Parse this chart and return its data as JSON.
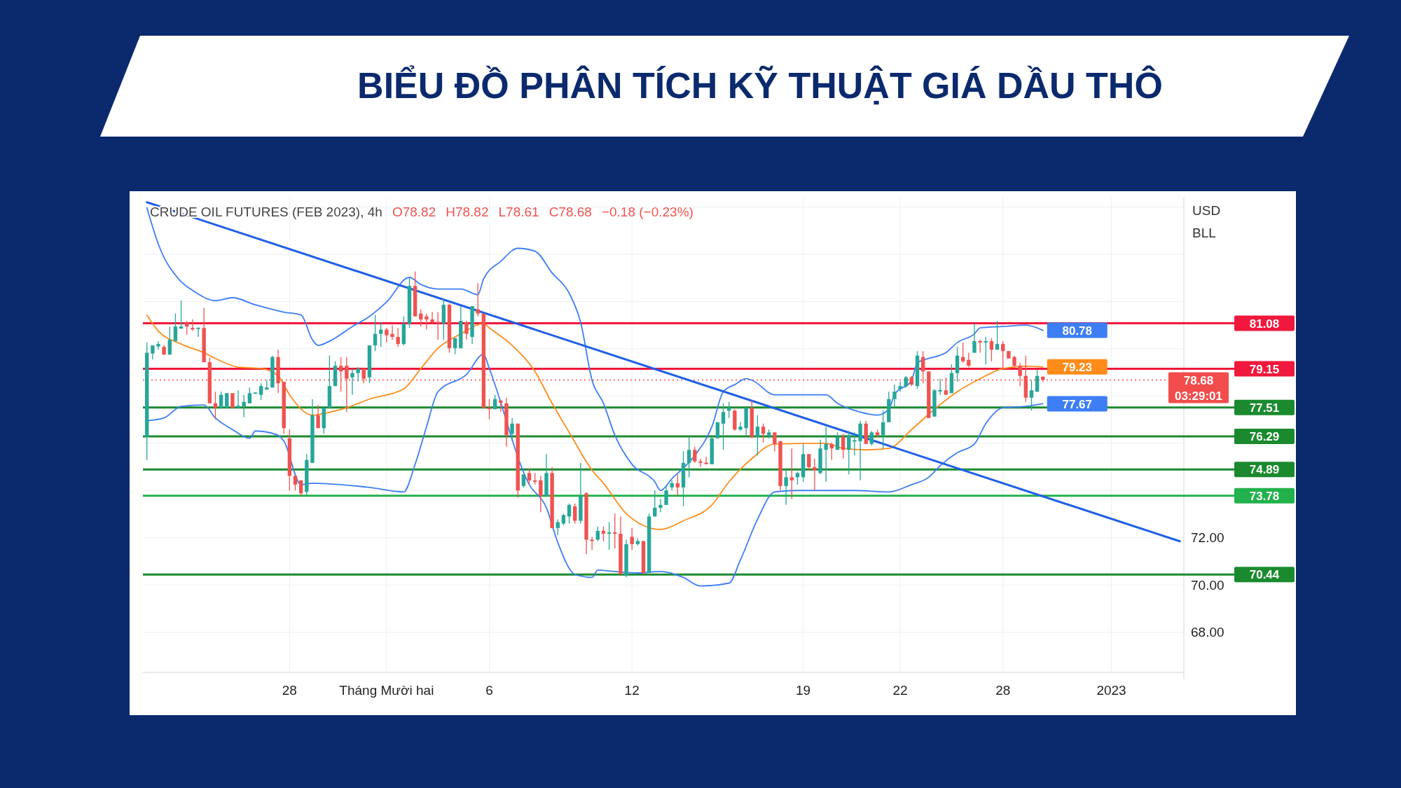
{
  "chart_data": {
    "type": "candlestick",
    "title": "BIỂU ĐỒ PHÂN TÍCH KỸ THUẬT GIÁ DẦU THÔ",
    "subtitle": "CRUDE OIL FUTURES (FEB 2023), 4h",
    "ylabel": "USD",
    "annotations": [
      "O78.82",
      "H78.82",
      "L78.61",
      "C78.68",
      "−0.18 (−0.23%)",
      "BLL"
    ],
    "categories": [
      null,
      null,
      null,
      null,
      null,
      null,
      null,
      null,
      null,
      null,
      null,
      null,
      null,
      null,
      null,
      null,
      null,
      null,
      null,
      null,
      null,
      null,
      null,
      null,
      null,
      "28",
      null,
      null,
      null,
      null,
      null,
      null,
      null,
      null,
      null,
      null,
      null,
      null,
      null,
      null,
      null,
      null,
      "Tháng Mười hai",
      null,
      null,
      null,
      null,
      null,
      null,
      null,
      null,
      null,
      null,
      null,
      null,
      null,
      null,
      null,
      null,
      null,
      "6",
      null,
      null,
      null,
      null,
      null,
      null,
      null,
      null,
      null,
      null,
      null,
      null,
      null,
      null,
      null,
      null,
      null,
      null,
      null,
      null,
      null,
      null,
      null,
      null,
      "12",
      null,
      null,
      null,
      null,
      null,
      null,
      null,
      null,
      null,
      null,
      null,
      null,
      null,
      null,
      null,
      null,
      null,
      null,
      null,
      null,
      null,
      null,
      null,
      null,
      null,
      null,
      null,
      null,
      null,
      "19",
      null,
      null,
      null,
      null,
      null,
      null,
      null,
      null,
      null,
      null,
      null,
      null,
      null,
      null,
      null,
      null,
      "22",
      null,
      null,
      null,
      null,
      null,
      null,
      null,
      null,
      null,
      null,
      null,
      null,
      null,
      null,
      null,
      null,
      null,
      "28",
      null,
      null,
      null,
      null,
      null,
      null,
      null,
      null,
      null,
      null,
      null,
      null,
      null,
      null,
      null,
      null,
      null,
      null,
      "2023",
      null,
      null,
      null,
      null,
      null,
      null,
      null,
      null,
      null,
      null,
      null,
      null
    ],
    "ylim": [
      66.3,
      86.4
    ],
    "yticks": [
      {
        "value": 68,
        "label": "68.00"
      },
      {
        "value": 70,
        "label": "70.00"
      },
      {
        "value": 72,
        "label": "72.00"
      },
      {
        "value": 74,
        "label": null
      },
      {
        "value": 76,
        "label": null
      },
      {
        "value": 78,
        "label": null
      },
      {
        "value": 80,
        "label": null
      },
      {
        "value": 82,
        "label": null
      },
      {
        "value": 84,
        "label": null
      },
      {
        "value": 86,
        "label": null
      }
    ],
    "grid": true,
    "ohlc": [
      [
        76.27,
        80.26,
        75.29,
        79.83
      ],
      [
        79.8,
        80.14,
        79.55,
        80.14
      ],
      [
        80.1,
        80.32,
        79.96,
        80.2
      ],
      [
        80.08,
        80.15,
        79.75,
        79.75
      ],
      [
        79.75,
        80.94,
        79.75,
        80.38
      ],
      [
        80.32,
        81.49,
        80.32,
        80.94
      ],
      [
        80.85,
        82.04,
        80.85,
        80.94
      ],
      [
        81.12,
        81.18,
        80.6,
        80.94
      ],
      [
        80.88,
        81.24,
        80.75,
        80.82
      ],
      [
        80.85,
        80.88,
        80.5,
        80.88
      ],
      [
        80.88,
        81.73,
        79.43,
        79.43
      ],
      [
        79.43,
        79.62,
        77.69,
        77.69
      ],
      [
        77.69,
        78.18,
        77.01,
        77.5
      ],
      [
        77.5,
        78.18,
        77.5,
        78.05
      ],
      [
        77.5,
        78.12,
        77.5,
        78.12
      ],
      [
        78.12,
        78.12,
        77.5,
        77.5
      ],
      [
        77.5,
        78.24,
        77.5,
        77.59
      ],
      [
        77.56,
        78.05,
        77.1,
        77.75
      ],
      [
        77.69,
        78.36,
        77.69,
        78.12
      ],
      [
        78.12,
        78.14,
        78.1,
        78.12
      ],
      [
        78.05,
        78.54,
        77.83,
        78.42
      ],
      [
        78.27,
        78.67,
        78.27,
        78.36
      ],
      [
        78.36,
        79.71,
        78.36,
        79.65
      ],
      [
        79.65,
        79.96,
        78.12,
        78.54
      ],
      [
        78.6,
        78.6,
        76.4,
        76.64
      ],
      [
        76.21,
        76.58,
        74.0,
        74.62
      ],
      [
        74.62,
        74.62,
        74.0,
        74.25
      ],
      [
        74.43,
        74.43,
        73.78,
        73.88
      ],
      [
        73.94,
        75.54,
        73.78,
        75.29
      ],
      [
        75.17,
        77.87,
        75.17,
        77.19
      ],
      [
        77.19,
        77.62,
        76.64,
        76.64
      ],
      [
        76.64,
        77.5,
        76.4,
        77.5
      ],
      [
        77.5,
        79.71,
        77.5,
        78.42
      ],
      [
        78.42,
        79.47,
        78.42,
        79.28
      ],
      [
        79.28,
        79.65,
        78.18,
        79.04
      ],
      [
        79.28,
        79.65,
        77.32,
        78.73
      ],
      [
        78.79,
        79.16,
        78.05,
        78.97
      ],
      [
        78.97,
        79.22,
        78.6,
        79.16
      ],
      [
        79.16,
        79.16,
        78.54,
        78.73
      ],
      [
        78.79,
        80.14,
        78.54,
        80.14
      ],
      [
        80.14,
        81.43,
        79.9,
        80.63
      ],
      [
        80.63,
        81.12,
        80.08,
        80.81
      ],
      [
        80.81,
        80.88,
        80.26,
        80.57
      ],
      [
        80.63,
        81.0,
        80.38,
        80.5
      ],
      [
        80.5,
        80.88,
        80.08,
        80.2
      ],
      [
        80.2,
        81.37,
        80.14,
        81.06
      ],
      [
        81.06,
        83.02,
        80.88,
        82.66
      ],
      [
        82.66,
        83.27,
        81.37,
        81.37
      ],
      [
        81.49,
        81.67,
        80.94,
        81.24
      ],
      [
        81.37,
        81.49,
        80.81,
        81.24
      ],
      [
        81.24,
        81.55,
        81.06,
        81.12
      ],
      [
        81.12,
        81.55,
        80.38,
        81.1
      ],
      [
        81.06,
        82.1,
        80.38,
        81.86
      ],
      [
        81.86,
        81.92,
        79.83,
        80.02
      ],
      [
        80.02,
        80.45,
        79.77,
        80.45
      ],
      [
        80.02,
        81.8,
        80.02,
        81.18
      ],
      [
        81.12,
        81.18,
        80.38,
        80.63
      ],
      [
        80.5,
        81.8,
        80.2,
        81.8
      ],
      [
        81.67,
        82.78,
        81.37,
        81.49
      ],
      [
        81.49,
        81.49,
        77.5,
        77.5
      ],
      [
        77.5,
        77.87,
        77.01,
        77.44
      ],
      [
        77.44,
        78.05,
        77.44,
        77.87
      ],
      [
        77.81,
        77.81,
        77.32,
        77.71
      ],
      [
        77.69,
        77.93,
        75.85,
        76.34
      ],
      [
        76.4,
        77.07,
        76.09,
        76.83
      ],
      [
        76.83,
        76.83,
        73.7,
        74.0
      ],
      [
        74.19,
        74.68,
        74.13,
        74.68
      ],
      [
        74.74,
        74.92,
        74.25,
        74.43
      ],
      [
        74.43,
        74.74,
        74.25,
        74.37
      ],
      [
        74.43,
        74.62,
        73.08,
        73.76
      ],
      [
        73.76,
        75.54,
        73.76,
        74.74
      ],
      [
        74.74,
        74.99,
        72.41,
        72.41
      ],
      [
        72.41,
        72.78,
        72.1,
        72.66
      ],
      [
        72.6,
        73.02,
        72.53,
        72.96
      ],
      [
        72.9,
        73.45,
        72.6,
        73.39
      ],
      [
        73.33,
        73.45,
        72.6,
        72.72
      ],
      [
        72.72,
        75.17,
        72.6,
        73.76
      ],
      [
        73.88,
        73.94,
        71.3,
        71.92
      ],
      [
        71.92,
        72.04,
        71.49,
        71.86
      ],
      [
        71.92,
        72.47,
        71.86,
        72.29
      ],
      [
        72.29,
        72.47,
        71.86,
        72.17
      ],
      [
        72.17,
        72.66,
        71.49,
        72.23
      ],
      [
        72.23,
        73.02,
        71.55,
        72.17
      ],
      [
        72.17,
        72.9,
        70.45,
        70.45
      ],
      [
        70.39,
        71.92,
        70.33,
        71.73
      ],
      [
        72.04,
        72.41,
        71.49,
        71.73
      ],
      [
        71.73,
        71.98,
        71.67,
        71.86
      ],
      [
        71.86,
        71.86,
        70.45,
        70.51
      ],
      [
        70.51,
        73.02,
        70.51,
        72.9
      ],
      [
        72.9,
        74.0,
        72.9,
        73.27
      ],
      [
        73.27,
        73.64,
        73.08,
        73.39
      ],
      [
        73.39,
        74.19,
        73.39,
        74.0
      ],
      [
        74.13,
        74.43,
        74.0,
        74.31
      ],
      [
        74.31,
        74.68,
        73.76,
        74.13
      ],
      [
        74.13,
        75.66,
        73.33,
        75.17
      ],
      [
        75.17,
        76.27,
        74.56,
        75.72
      ],
      [
        75.72,
        75.85,
        75.17,
        75.23
      ],
      [
        75.23,
        75.35,
        74.99,
        75.17
      ],
      [
        75.17,
        75.42,
        75.1,
        75.13
      ],
      [
        75.11,
        76.27,
        75.11,
        76.21
      ],
      [
        76.21,
        76.89,
        76.21,
        76.89
      ],
      [
        76.83,
        77.69,
        75.72,
        77.32
      ],
      [
        77.38,
        77.75,
        77.07,
        77.5
      ],
      [
        77.38,
        77.44,
        76.52,
        76.58
      ],
      [
        76.58,
        76.89,
        76.52,
        76.7
      ],
      [
        76.64,
        77.5,
        76.34,
        77.5
      ],
      [
        77.5,
        77.81,
        76.21,
        76.27
      ],
      [
        76.27,
        77.19,
        75.48,
        76.7
      ],
      [
        76.7,
        76.83,
        76.03,
        76.4
      ],
      [
        76.34,
        76.58,
        76.21,
        76.46
      ],
      [
        76.46,
        76.46,
        75.66,
        75.97
      ],
      [
        76.09,
        76.09,
        74.0,
        74.19
      ],
      [
        74.19,
        74.86,
        73.39,
        74.56
      ],
      [
        74.56,
        75.78,
        73.64,
        74.43
      ],
      [
        74.56,
        74.8,
        74.25,
        74.74
      ],
      [
        74.56,
        75.97,
        74.37,
        75.54
      ],
      [
        75.54,
        75.54,
        74.86,
        74.99
      ],
      [
        74.99,
        75.35,
        74.0,
        74.86
      ],
      [
        74.74,
        76.15,
        74.68,
        75.78
      ],
      [
        75.72,
        76.7,
        74.37,
        75.97
      ],
      [
        75.97,
        76.03,
        75.29,
        75.78
      ],
      [
        75.72,
        76.46,
        75.72,
        76.27
      ],
      [
        76.27,
        76.4,
        75.35,
        75.72
      ],
      [
        75.72,
        76.52,
        74.68,
        76.34
      ],
      [
        76.09,
        76.46,
        75.48,
        76.11
      ],
      [
        76.09,
        76.95,
        74.43,
        76.83
      ],
      [
        76.83,
        76.95,
        75.97,
        75.97
      ],
      [
        75.97,
        76.52,
        75.91,
        76.46
      ],
      [
        76.46,
        76.58,
        76.27,
        76.34
      ],
      [
        76.34,
        77.38,
        75.78,
        76.89
      ],
      [
        76.89,
        78.18,
        76.89,
        77.87
      ],
      [
        77.87,
        78.48,
        77.5,
        78.18
      ],
      [
        78.3,
        78.6,
        78.18,
        78.42
      ],
      [
        78.42,
        78.85,
        78.36,
        78.79
      ],
      [
        78.79,
        78.85,
        78.42,
        78.48
      ],
      [
        78.42,
        79.9,
        78.3,
        79.71
      ],
      [
        79.65,
        79.9,
        78.54,
        79.04
      ],
      [
        79.04,
        79.04,
        77.07,
        77.07
      ],
      [
        77.13,
        78.3,
        77.13,
        78.24
      ],
      [
        78.2,
        78.73,
        78.05,
        78.24
      ],
      [
        78.24,
        78.79,
        78.05,
        78.05
      ],
      [
        78.12,
        79.34,
        78.12,
        78.97
      ],
      [
        78.97,
        80.08,
        78.6,
        79.71
      ],
      [
        79.65,
        80.26,
        79.4,
        79.47
      ],
      [
        79.53,
        79.83,
        79.22,
        79.28
      ],
      [
        79.83,
        81.06,
        79.83,
        80.32
      ],
      [
        80.32,
        80.38,
        79.83,
        80.26
      ],
      [
        80.26,
        80.5,
        79.34,
        80.32
      ],
      [
        80.32,
        80.45,
        79.47,
        79.96
      ],
      [
        79.96,
        81.18,
        79.96,
        80.2
      ],
      [
        80.2,
        80.32,
        79.16,
        79.9
      ],
      [
        79.9,
        79.9,
        79.59,
        79.59
      ],
      [
        79.65,
        79.71,
        79.22,
        79.28
      ],
      [
        79.28,
        79.4,
        78.42,
        78.85
      ],
      [
        78.85,
        79.71,
        77.75,
        77.93
      ],
      [
        77.93,
        78.67,
        77.38,
        78.24
      ],
      [
        78.18,
        79.1,
        78.18,
        78.85
      ],
      [
        78.82,
        78.82,
        78.61,
        78.68
      ],
      null,
      null,
      null,
      null,
      null,
      null,
      null,
      null,
      null,
      null,
      null,
      null,
      null,
      null,
      null,
      null,
      null,
      null,
      null,
      null,
      null,
      null,
      null,
      null
    ],
    "series": [
      {
        "type": "line",
        "color": "#3d7ef5",
        "values": [
          85.97,
          null,
          84.43,
          null,
          null,
          null,
          82.84,
          null,
          82.47,
          null,
          null,
          null,
          82.04,
          null,
          null,
          82.16,
          null,
          null,
          null,
          81.86,
          null,
          null,
          null,
          null,
          81.55,
          null,
          null,
          81.43,
          null,
          80.38,
          80.14,
          null,
          80.32,
          null,
          null,
          null,
          80.94,
          null,
          null,
          81.37,
          null,
          null,
          81.98,
          null,
          null,
          null,
          83.02,
          null,
          82.72,
          null,
          null,
          82.53,
          null,
          null,
          null,
          82.53,
          null,
          null,
          82.29,
          82.96,
          null,
          null,
          83.7,
          null,
          null,
          84.25,
          null,
          null,
          84.13,
          null,
          null,
          83.21,
          null,
          null,
          82.35,
          null,
          81.12,
          null,
          78.67,
          null,
          77.69,
          null,
          76.34,
          null,
          null,
          75.11,
          null,
          null,
          null,
          74.37,
          74.0,
          null,
          74.5,
          null,
          null,
          null,
          75.48,
          null,
          null,
          76.7,
          null,
          78.18,
          null,
          78.48,
          null,
          78.73,
          78.67,
          null,
          null,
          null,
          78.05,
          null,
          null,
          null,
          78.05,
          null,
          null,
          null,
          null,
          78.05,
          null,
          77.69,
          null,
          null,
          null,
          77.32,
          null,
          null,
          77.19,
          null,
          77.44,
          78.05,
          null,
          null,
          78.67,
          79.4,
          null,
          79.59,
          null,
          null,
          79.83,
          null,
          80.26,
          null,
          null,
          80.63,
          80.88,
          null,
          null,
          null,
          80.94,
          null,
          null,
          null,
          81.0,
          null,
          null,
          80.78,
          null,
          null,
          null,
          null,
          null,
          null,
          null,
          null,
          null,
          null,
          null,
          null,
          null,
          null,
          null,
          null,
          null,
          null,
          null,
          null,
          null,
          null,
          null,
          null
        ],
        "value_labels": [
          null,
          null,
          null,
          null,
          null,
          null,
          null,
          null,
          null,
          null,
          null,
          null,
          null,
          null,
          null,
          null,
          null,
          null,
          null,
          null,
          null,
          null,
          null,
          null,
          null,
          null,
          null,
          null,
          null,
          null,
          null,
          null,
          null,
          null,
          null,
          null,
          null,
          null,
          null,
          null,
          null,
          null,
          null,
          null,
          null,
          null,
          null,
          null,
          null,
          null,
          null,
          null,
          null,
          null,
          null,
          null,
          null,
          null,
          null,
          null,
          null,
          null,
          null,
          null,
          null,
          null,
          null,
          null,
          null,
          null,
          null,
          null,
          null,
          null,
          null,
          null,
          null,
          null,
          null,
          null,
          null,
          null,
          null,
          null,
          null,
          null,
          null,
          null,
          null,
          null,
          null,
          null,
          null,
          null,
          null,
          null,
          null,
          null,
          null,
          null,
          null,
          null,
          null,
          null,
          null,
          null,
          null,
          null,
          null,
          null,
          null,
          null,
          null,
          null,
          null,
          null,
          null,
          null,
          null,
          null,
          null,
          null,
          null,
          null,
          null,
          null,
          null,
          null,
          null,
          null,
          null,
          null,
          null,
          null,
          null,
          null,
          null,
          null,
          null,
          null,
          null,
          null,
          null,
          null,
          null,
          null,
          null,
          null,
          null,
          null,
          null,
          null,
          null,
          null,
          null,
          null,
          null,
          "80.78",
          null,
          null,
          null,
          null,
          null,
          null,
          null,
          null,
          null,
          null,
          null,
          null,
          null,
          null,
          null,
          null,
          null,
          null,
          null,
          null,
          null,
          null,
          null,
          null
        ]
      },
      {
        "type": "line",
        "color": "#ff8c1a",
        "values": [
          81.43,
          null,
          80.75,
          null,
          null,
          null,
          80.2,
          null,
          null,
          null,
          79.83,
          null,
          79.59,
          null,
          null,
          null,
          79.22,
          null,
          null,
          null,
          79.16,
          null,
          null,
          78.85,
          null,
          78.05,
          null,
          null,
          null,
          77.19,
          null,
          77.26,
          null,
          null,
          null,
          77.5,
          null,
          null,
          null,
          77.87,
          null,
          null,
          null,
          null,
          null,
          78.3,
          null,
          null,
          79.16,
          null,
          null,
          80.02,
          null,
          null,
          null,
          80.63,
          null,
          null,
          null,
          81.06,
          80.88,
          null,
          null,
          null,
          80.14,
          null,
          null,
          null,
          79.04,
          null,
          null,
          77.69,
          null,
          null,
          76.46,
          null,
          null,
          null,
          74.86,
          null,
          74.31,
          null,
          null,
          null,
          73.02,
          null,
          null,
          null,
          null,
          null,
          72.35,
          null,
          null,
          null,
          72.72,
          null,
          null,
          null,
          null,
          73.39,
          null,
          null,
          74.37,
          null,
          null,
          null,
          75.35,
          null,
          null,
          null,
          75.97,
          null,
          null,
          null,
          null,
          null,
          null,
          null,
          null,
          76.0,
          null,
          null,
          75.78,
          null,
          null,
          null,
          75.72,
          null,
          null,
          null,
          75.78,
          null,
          null,
          null,
          76.58,
          null,
          null,
          null,
          77.44,
          null,
          null,
          null,
          78.18,
          null,
          null,
          null,
          78.73,
          null,
          null,
          null,
          79.16,
          null,
          null,
          null,
          79.26,
          null,
          null,
          79.23,
          null,
          null,
          null,
          null,
          null,
          null,
          null,
          null,
          null,
          null,
          null,
          null,
          null,
          null,
          null,
          null,
          null,
          null,
          null,
          null,
          null,
          null,
          null,
          null
        ],
        "value_labels": [
          null,
          null,
          null,
          null,
          null,
          null,
          null,
          null,
          null,
          null,
          null,
          null,
          null,
          null,
          null,
          null,
          null,
          null,
          null,
          null,
          null,
          null,
          null,
          null,
          null,
          null,
          null,
          null,
          null,
          null,
          null,
          null,
          null,
          null,
          null,
          null,
          null,
          null,
          null,
          null,
          null,
          null,
          null,
          null,
          null,
          null,
          null,
          null,
          null,
          null,
          null,
          null,
          null,
          null,
          null,
          null,
          null,
          null,
          null,
          null,
          null,
          null,
          null,
          null,
          null,
          null,
          null,
          null,
          null,
          null,
          null,
          null,
          null,
          null,
          null,
          null,
          null,
          null,
          null,
          null,
          null,
          null,
          null,
          null,
          null,
          null,
          null,
          null,
          null,
          null,
          null,
          null,
          null,
          null,
          null,
          null,
          null,
          null,
          null,
          null,
          null,
          null,
          null,
          null,
          null,
          null,
          null,
          null,
          null,
          null,
          null,
          null,
          null,
          null,
          null,
          null,
          null,
          null,
          null,
          null,
          null,
          null,
          null,
          null,
          null,
          null,
          null,
          null,
          null,
          null,
          null,
          null,
          null,
          null,
          null,
          null,
          null,
          null,
          null,
          null,
          null,
          null,
          null,
          null,
          null,
          null,
          null,
          null,
          null,
          null,
          null,
          null,
          null,
          null,
          null,
          null,
          null,
          "79.23",
          null,
          null,
          null,
          null,
          null,
          null,
          null,
          null,
          null,
          null,
          null,
          null,
          null,
          null,
          null,
          null,
          null,
          null,
          null,
          null,
          null,
          null,
          null,
          null
        ]
      },
      {
        "type": "line",
        "color": "#3d7ef5",
        "values": [
          76.95,
          null,
          null,
          77.07,
          null,
          null,
          77.56,
          null,
          null,
          null,
          77.62,
          null,
          77.07,
          null,
          null,
          76.58,
          null,
          null,
          76.21,
          76.52,
          null,
          null,
          null,
          76.34,
          76.09,
          null,
          null,
          74.25,
          null,
          74.31,
          null,
          null,
          null,
          null,
          74.25,
          null,
          null,
          null,
          null,
          74.13,
          null,
          null,
          null,
          null,
          null,
          73.94,
          null,
          75.11,
          null,
          76.7,
          null,
          78.18,
          null,
          null,
          null,
          null,
          78.91,
          null,
          null,
          79.77,
          79.16,
          null,
          null,
          null,
          null,
          null,
          null,
          74.25,
          null,
          null,
          73.27,
          null,
          71.8,
          null,
          null,
          70.45,
          null,
          null,
          70.32,
          70.63,
          null,
          null,
          70.57,
          null,
          null,
          null,
          70.51,
          null,
          null,
          null,
          70.57,
          null,
          null,
          null,
          70.32,
          null,
          null,
          69.96,
          null,
          null,
          null,
          null,
          70.08,
          null,
          71.06,
          null,
          null,
          72.78,
          null,
          null,
          73.94,
          null,
          null,
          null,
          74.0,
          null,
          null,
          null,
          null,
          74.0,
          null,
          null,
          null,
          null,
          74.0,
          null,
          null,
          null,
          null,
          null,
          73.94,
          null,
          null,
          null,
          74.25,
          null,
          null,
          74.56,
          null,
          75.05,
          null,
          null,
          75.6,
          null,
          null,
          75.97,
          null,
          76.83,
          null,
          null,
          77.5,
          null,
          null,
          null,
          77.56,
          null,
          null,
          77.67,
          null,
          null,
          null,
          null,
          null,
          null,
          null,
          null,
          null,
          null,
          null,
          null,
          null,
          null,
          null,
          null,
          null,
          null,
          null,
          null,
          null,
          null,
          null,
          null
        ],
        "value_labels": [
          null,
          null,
          null,
          null,
          null,
          null,
          null,
          null,
          null,
          null,
          null,
          null,
          null,
          null,
          null,
          null,
          null,
          null,
          null,
          null,
          null,
          null,
          null,
          null,
          null,
          null,
          null,
          null,
          null,
          null,
          null,
          null,
          null,
          null,
          null,
          null,
          null,
          null,
          null,
          null,
          null,
          null,
          null,
          null,
          null,
          null,
          null,
          null,
          null,
          null,
          null,
          null,
          null,
          null,
          null,
          null,
          null,
          null,
          null,
          null,
          null,
          null,
          null,
          null,
          null,
          null,
          null,
          null,
          null,
          null,
          null,
          null,
          null,
          null,
          null,
          null,
          null,
          null,
          null,
          null,
          null,
          null,
          null,
          null,
          null,
          null,
          null,
          null,
          null,
          null,
          null,
          null,
          null,
          null,
          null,
          null,
          null,
          null,
          null,
          null,
          null,
          null,
          null,
          null,
          null,
          null,
          null,
          null,
          null,
          null,
          null,
          null,
          null,
          null,
          null,
          null,
          null,
          null,
          null,
          null,
          null,
          null,
          null,
          null,
          null,
          null,
          null,
          null,
          null,
          null,
          null,
          null,
          null,
          null,
          null,
          null,
          null,
          null,
          null,
          null,
          null,
          null,
          null,
          null,
          null,
          null,
          null,
          null,
          null,
          null,
          null,
          null,
          null,
          null,
          null,
          null,
          null,
          "77.67",
          null,
          null,
          null,
          null,
          null,
          null,
          null,
          null,
          null,
          null,
          null,
          null,
          null,
          null,
          null,
          null,
          null,
          null,
          null,
          null,
          null,
          null,
          null,
          null
        ]
      },
      {
        "type": "line",
        "color": "#1f5fe6",
        "values": [
          86.2,
          null,
          null,
          null,
          null,
          null,
          null,
          null,
          null,
          null,
          null,
          null,
          null,
          null,
          null,
          null,
          null,
          null,
          null,
          null,
          null,
          null,
          null,
          null,
          null,
          null,
          null,
          null,
          null,
          null,
          null,
          null,
          null,
          null,
          null,
          null,
          null,
          null,
          null,
          null,
          null,
          null,
          null,
          null,
          null,
          null,
          null,
          null,
          null,
          null,
          null,
          null,
          null,
          null,
          null,
          null,
          null,
          null,
          null,
          null,
          null,
          null,
          null,
          null,
          null,
          null,
          null,
          null,
          null,
          null,
          null,
          null,
          null,
          null,
          null,
          null,
          null,
          null,
          null,
          null,
          null,
          null,
          null,
          null,
          null,
          null,
          null,
          null,
          null,
          null,
          null,
          null,
          null,
          null,
          null,
          null,
          null,
          null,
          null,
          null,
          null,
          null,
          null,
          null,
          null,
          null,
          null,
          null,
          null,
          null,
          null,
          null,
          null,
          null,
          null,
          null,
          null,
          null,
          null,
          null,
          null,
          null,
          null,
          null,
          null,
          null,
          null,
          null,
          null,
          null,
          null,
          null,
          null,
          null,
          null,
          null,
          null,
          null,
          null,
          null,
          null,
          null,
          null,
          null,
          null,
          null,
          null,
          null,
          null,
          null,
          null,
          null,
          null,
          null,
          null,
          null,
          null,
          null,
          null,
          null,
          null,
          null,
          null,
          null,
          null,
          null,
          null,
          null,
          null,
          null,
          null,
          null,
          null,
          null,
          null,
          null,
          null,
          null,
          null,
          null,
          null,
          71.85
        ]
      }
    ],
    "ref_lines": [
      {
        "axis": "y",
        "value": 81.08,
        "label": "81.08",
        "color": "#f0183c"
      },
      {
        "axis": "y",
        "value": 79.15,
        "label": "79.15",
        "color": "#f0183c"
      },
      {
        "axis": "y",
        "value": 78.68,
        "label": "78.68\n03:29:01",
        "color": "#f24c4c",
        "line_style": "dotted"
      },
      {
        "axis": "y",
        "value": 77.51,
        "label": "77.51",
        "color": "#1b8a2f"
      },
      {
        "axis": "y",
        "value": 76.29,
        "label": "76.29",
        "color": "#1b8a2f"
      },
      {
        "axis": "y",
        "value": 74.89,
        "label": "74.89",
        "color": "#1b8a2f"
      },
      {
        "axis": "y",
        "value": 73.78,
        "label": "73.78",
        "color": "#22b14c"
      },
      {
        "axis": "y",
        "value": 70.44,
        "label": "70.44",
        "color": "#1b8a2f"
      }
    ]
  }
}
